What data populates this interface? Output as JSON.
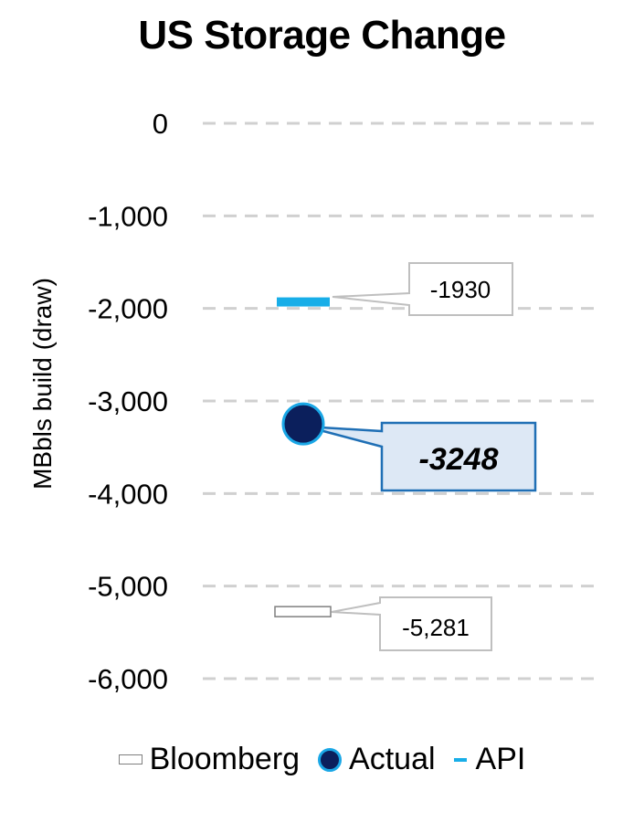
{
  "chart_data": {
    "type": "scatter",
    "title": "US Storage Change",
    "ylabel": "MBbls build (draw)",
    "xlabel": "",
    "ylim": [
      -6000,
      0
    ],
    "yticks": [
      0,
      -1000,
      -2000,
      -3000,
      -4000,
      -5000,
      -6000
    ],
    "ytick_labels": [
      "0",
      "-1,000",
      "-2,000",
      "-3,000",
      "-4,000",
      "-5,000",
      "-6,000"
    ],
    "grid": true,
    "legend_position": "bottom",
    "series": [
      {
        "name": "Bloomberg",
        "marker": "hollow-bar",
        "value": -5281,
        "label": "-5,281",
        "color": "#7f7f7f"
      },
      {
        "name": "Actual",
        "marker": "circle",
        "value": -3248,
        "label": "-3248",
        "color": "#0b1f5c",
        "edge": "#1aa7e6"
      },
      {
        "name": "API",
        "marker": "dash",
        "value": -1930,
        "label": "-1930",
        "color": "#18aee8"
      }
    ]
  },
  "colors": {
    "grid": "#d0d0d0",
    "callout_border": "#bfbfbf",
    "actual_callout_fill": "#dde8f5",
    "actual_callout_border": "#1f6fb5"
  }
}
